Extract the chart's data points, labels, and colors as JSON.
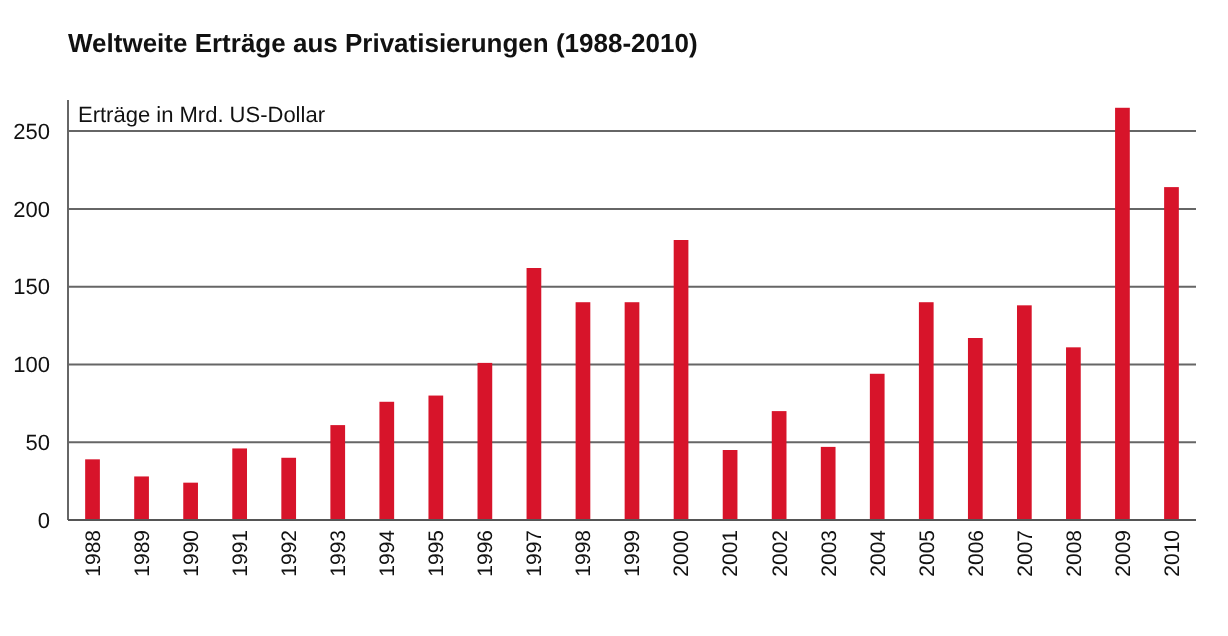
{
  "chart_data": {
    "type": "bar",
    "title": "Weltweite Erträge aus Privatisierungen (1988-2010)",
    "ylabel": "Erträge in Mrd. US-Dollar",
    "categories": [
      "1988",
      "1989",
      "1990",
      "1991",
      "1992",
      "1993",
      "1994",
      "1995",
      "1996",
      "1997",
      "1998",
      "1999",
      "2000",
      "2001",
      "2002",
      "2003",
      "2004",
      "2005",
      "2006",
      "2007",
      "2008",
      "2009",
      "2010"
    ],
    "values": [
      39,
      28,
      24,
      46,
      40,
      61,
      76,
      80,
      101,
      162,
      140,
      140,
      180,
      45,
      70,
      47,
      94,
      140,
      117,
      138,
      111,
      265,
      214
    ],
    "color": "#d7142a",
    "ylim": [
      0,
      270
    ],
    "yticks": [
      0,
      50,
      100,
      150,
      200,
      250
    ],
    "grid": "y"
  }
}
